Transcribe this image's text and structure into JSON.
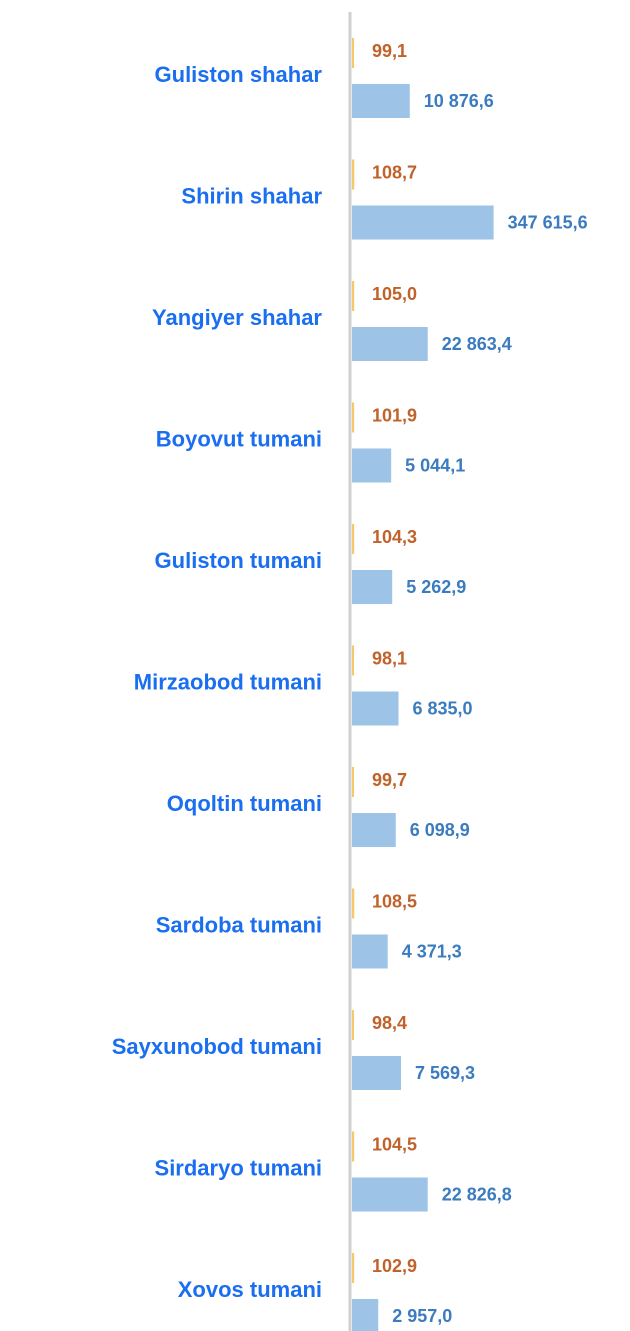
{
  "chart_data": {
    "type": "bar",
    "orientation": "horizontal",
    "categories": [
      "Guliston shahar",
      "Shirin shahar",
      "Yangiyer shahar",
      "Boyovut  tumani",
      "Guliston  tumani",
      "Mirzaobod  tumani",
      "Oqoltin  tumani",
      "Sardoba  tumani",
      "Sayxunobod  tumani",
      "Sirdaryo  tumani",
      "Xovos tumani"
    ],
    "series": [
      {
        "color": "#f5c96a",
        "axis": "x2",
        "values": [
          99.1,
          108.7,
          105.0,
          101.9,
          104.3,
          98.1,
          99.7,
          108.5,
          98.4,
          104.5,
          102.9
        ],
        "value_labels": [
          "99,1",
          "108,7",
          "105,0",
          "101,9",
          "104,3",
          "98,1",
          "99,7",
          "108,5",
          "98,4",
          "104,5",
          "102,9"
        ]
      },
      {
        "color": "#9dc3e6",
        "axis": "x",
        "values": [
          10876.6,
          347615.6,
          22863.4,
          5044.1,
          5262.9,
          6835.0,
          6098.9,
          4371.3,
          7569.3,
          22826.8,
          2957.0
        ],
        "value_labels": [
          "10 876,6",
          "347 615,6",
          "22 863,4",
          "5 044,1",
          "5 262,9",
          "6 835,0",
          "6 098,9",
          "4 371,3",
          "7 569,3",
          "22 826,8",
          "2 957,0"
        ]
      }
    ],
    "xlim": [
      1000,
      400000
    ],
    "log_scale": true,
    "x2lim": [
      0,
      7000
    ]
  }
}
